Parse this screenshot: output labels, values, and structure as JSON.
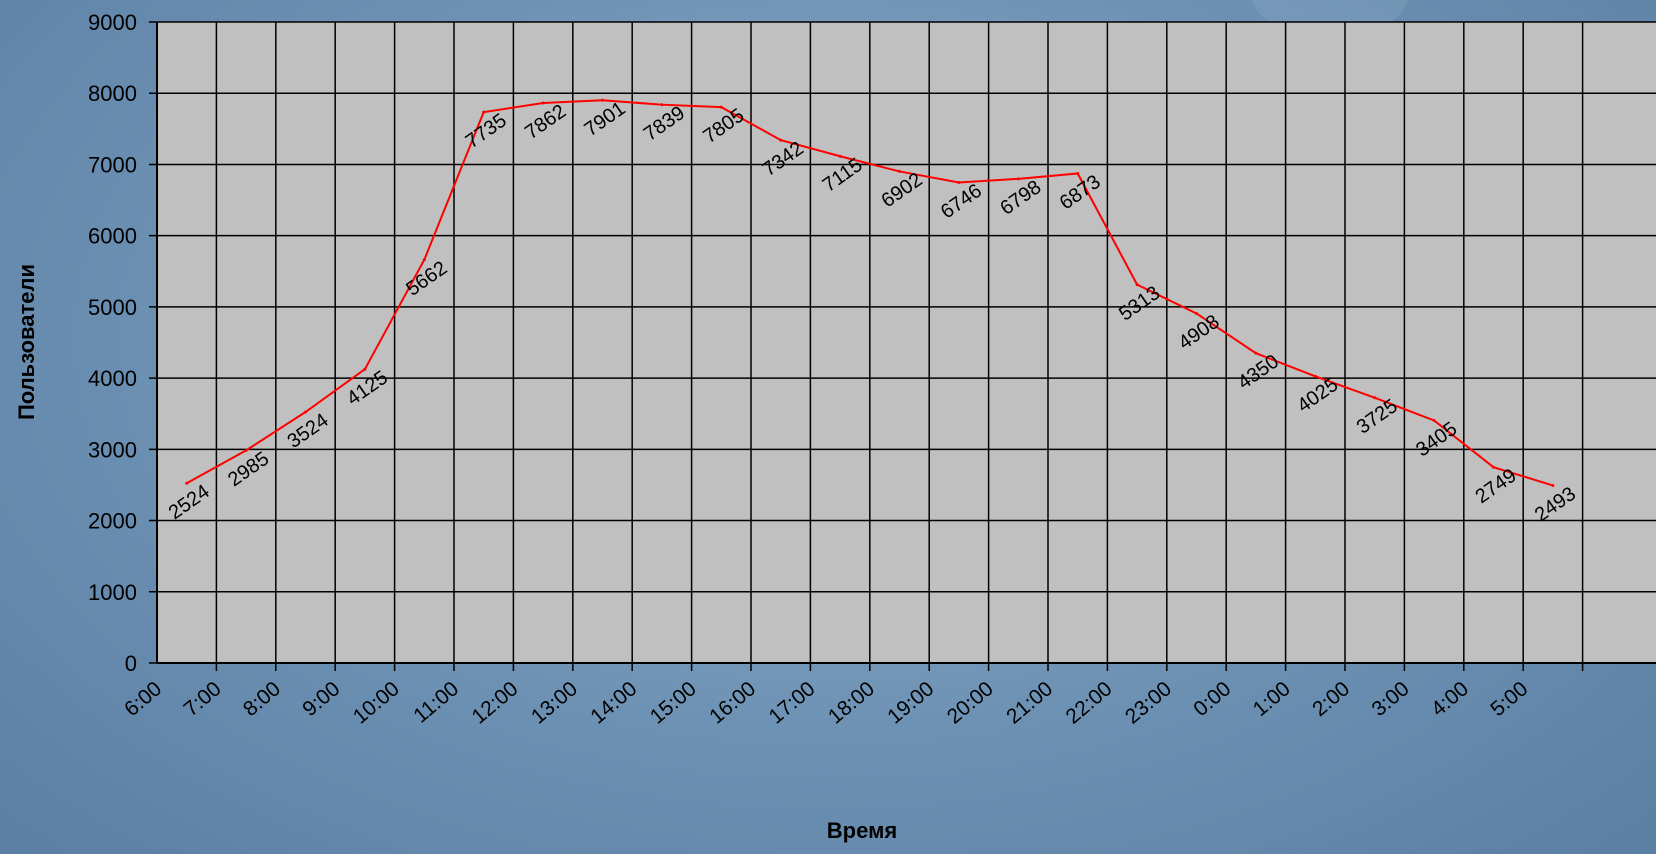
{
  "chart_data": {
    "type": "line",
    "title": "",
    "xlabel": "Время",
    "ylabel": "Пользователи",
    "ylim": [
      0,
      9000
    ],
    "yticks": [
      0,
      1000,
      2000,
      3000,
      4000,
      5000,
      6000,
      7000,
      8000,
      9000
    ],
    "grid": true,
    "legend": "none",
    "categories": [
      "6:00",
      "7:00",
      "8:00",
      "9:00",
      "10:00",
      "11:00",
      "12:00",
      "13:00",
      "14:00",
      "15:00",
      "16:00",
      "17:00",
      "18:00",
      "19:00",
      "20:00",
      "21:00",
      "22:00",
      "23:00",
      "0:00",
      "1:00",
      "2:00",
      "3:00",
      "4:00",
      "5:00"
    ],
    "series": [
      {
        "color": "#ff0000",
        "values": [
          2524,
          2985,
          3524,
          4125,
          5662,
          7735,
          7862,
          7901,
          7839,
          7805,
          7342,
          7115,
          6902,
          6746,
          6798,
          6873,
          5313,
          4908,
          4350,
          4025,
          3725,
          3405,
          2749,
          2493
        ]
      }
    ],
    "colors": {
      "plot_background": "#c0c0c0",
      "grid": "#000000",
      "line": "#ff0000"
    }
  }
}
